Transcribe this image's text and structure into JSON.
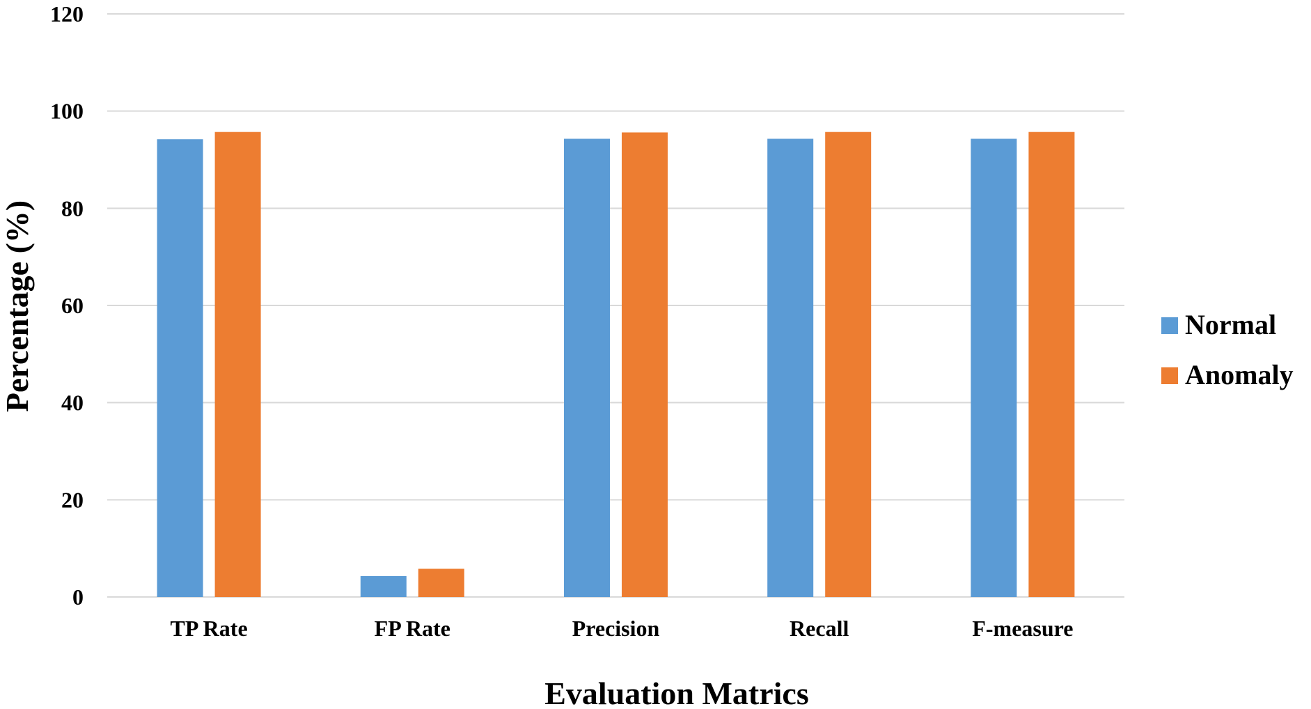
{
  "chart_data": {
    "type": "bar",
    "title": "",
    "xlabel": "Evaluation Matrics",
    "ylabel": "Percentage (%)",
    "ylim": [
      0,
      120
    ],
    "yticks": [
      0,
      20,
      40,
      60,
      80,
      100,
      120
    ],
    "grid": true,
    "legend_position": "right",
    "categories": [
      "TP Rate",
      "FP Rate",
      "Precision",
      "Recall",
      "F-measure"
    ],
    "series": [
      {
        "name": "Normal",
        "color": "#5b9bd5",
        "values": [
          94.2,
          4.3,
          94.3,
          94.3,
          94.3
        ]
      },
      {
        "name": "Anomaly",
        "color": "#ed7d31",
        "values": [
          95.7,
          5.8,
          95.6,
          95.7,
          95.7
        ]
      }
    ]
  }
}
